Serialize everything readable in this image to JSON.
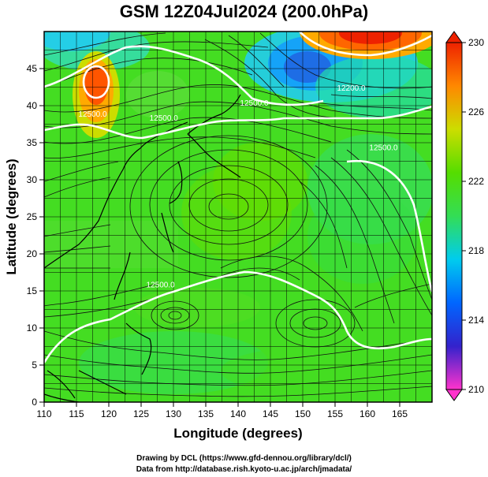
{
  "title": "GSM 12Z04Jul2024 (200.0hPa)",
  "credits": {
    "line1": "Drawing by DCL (https://www.gfd-dennou.org/library/dcl/)",
    "line2": "Data from http://database.rish.kyoto-u.ac.jp/arch/jmadata/"
  },
  "chart_data": {
    "type": "heatmap",
    "xlabel": "Longitude (degrees)",
    "ylabel": "Latitude  (degrees)",
    "xlim": [
      110,
      170
    ],
    "ylim": [
      0,
      50
    ],
    "xticks": [
      "110",
      "115",
      "120",
      "125",
      "130",
      "135",
      "140",
      "145",
      "150",
      "155",
      "160",
      "165"
    ],
    "yticks": [
      "0",
      "5",
      "10",
      "15",
      "20",
      "25",
      "30",
      "35",
      "40",
      "45"
    ],
    "colorbar": {
      "min": 210,
      "max": 230,
      "ticks": [
        "210",
        "214",
        "218",
        "222",
        "226",
        "230"
      ],
      "stops": [
        "#ff33cc",
        "#3322cc",
        "#0066ff",
        "#00ccee",
        "#33dd55",
        "#55dd00",
        "#ccdd00",
        "#ff8800",
        "#ee2200"
      ]
    },
    "contour_labels": [
      {
        "text": "12500.0",
        "lon": 117.5,
        "lat": 38.5
      },
      {
        "text": "12500.0",
        "lon": 128.5,
        "lat": 38.0
      },
      {
        "text": "12500.0",
        "lon": 142.5,
        "lat": 40.0
      },
      {
        "text": "12200.0",
        "lon": 157.5,
        "lat": 42.0
      },
      {
        "text": "12500.0",
        "lon": 162.5,
        "lat": 34.0
      },
      {
        "text": "12500.0",
        "lon": 128.0,
        "lat": 15.5
      }
    ],
    "features": [
      "wind streamlines",
      "coastlines",
      "lat-lon grid"
    ]
  }
}
